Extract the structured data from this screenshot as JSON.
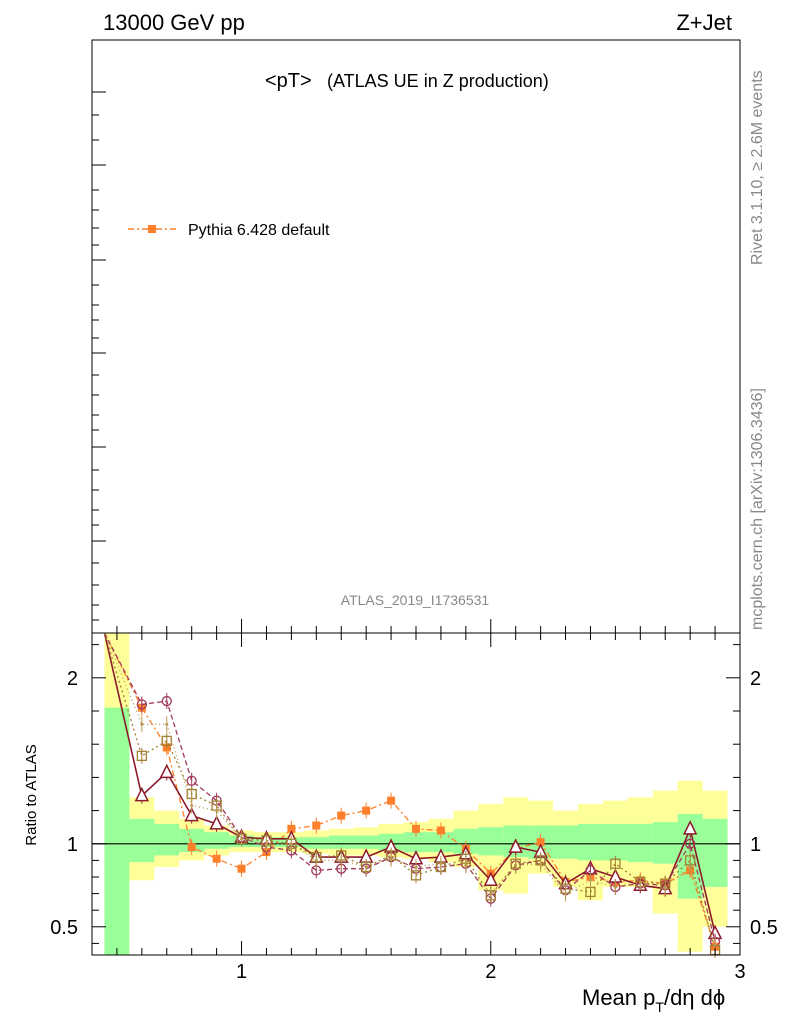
{
  "header": {
    "left": "13000 GeV pp",
    "right": "Z+Jet",
    "title_main": "<pT>",
    "title_sub": "(ATLAS UE in Z production)",
    "analysis": "ATLAS_2019_I1736531"
  },
  "side": {
    "rivet": "Rivet 3.1.10, ≥ 2.6M events",
    "mcplots": "mcplots.cern.ch [arXiv:1306.3436]"
  },
  "legend": {
    "entry": "Pythia 6.428 default"
  },
  "axes": {
    "xlabel_main": "Mean p",
    "xlabel_sub": "T",
    "xlabel_rest": "/dη dϕ",
    "ylabel": "Ratio to ATLAS"
  },
  "colors": {
    "band_inner": "#99ff99",
    "band_outer": "#ffff99",
    "pythia": "#ff7f2a",
    "c_dark": "#8b1a2b",
    "c_circle": "#a0385a",
    "c_square": "#a08030",
    "c_dot": "#b89a50"
  },
  "chart_data": {
    "type": "line",
    "xlim": [
      0.4,
      3.0
    ],
    "ylim": [
      0.33,
      2.27
    ],
    "xticks": [
      1,
      2,
      3
    ],
    "yticks": [
      0.5,
      1,
      2
    ],
    "x": [
      0.45,
      0.6,
      0.7,
      0.8,
      0.9,
      1.0,
      1.1,
      1.2,
      1.3,
      1.4,
      1.5,
      1.6,
      1.7,
      1.8,
      1.9,
      2.0,
      2.1,
      2.2,
      2.3,
      2.4,
      2.5,
      2.6,
      2.7,
      2.8,
      2.9
    ],
    "bin_edges": [
      0.45,
      0.55,
      0.65,
      0.75,
      0.85,
      0.95,
      1.05,
      1.15,
      1.25,
      1.35,
      1.45,
      1.55,
      1.65,
      1.75,
      1.85,
      1.95,
      2.05,
      2.15,
      2.25,
      2.35,
      2.45,
      2.55,
      2.65,
      2.75,
      2.85,
      2.95
    ],
    "band_inner": {
      "lo": [
        0.33,
        0.89,
        0.93,
        0.95,
        0.97,
        0.98,
        0.98,
        0.98,
        0.97,
        0.97,
        0.97,
        0.96,
        0.95,
        0.95,
        0.94,
        0.93,
        0.92,
        0.91,
        0.91,
        0.9,
        0.9,
        0.89,
        0.88,
        0.67,
        0.74
      ],
      "hi": [
        1.82,
        1.15,
        1.12,
        1.09,
        1.07,
        1.05,
        1.04,
        1.04,
        1.04,
        1.05,
        1.05,
        1.06,
        1.07,
        1.07,
        1.09,
        1.1,
        1.11,
        1.11,
        1.11,
        1.12,
        1.12,
        1.12,
        1.13,
        1.18,
        1.15
      ]
    },
    "band_outer": {
      "lo": [
        0.33,
        0.78,
        0.86,
        0.9,
        0.93,
        0.95,
        0.95,
        0.95,
        0.94,
        0.93,
        0.93,
        0.92,
        0.91,
        0.89,
        0.86,
        0.72,
        0.7,
        0.82,
        0.74,
        0.66,
        0.74,
        0.74,
        0.58,
        0.35,
        0.5
      ],
      "hi": [
        2.27,
        1.28,
        1.2,
        1.15,
        1.11,
        1.08,
        1.07,
        1.07,
        1.08,
        1.09,
        1.1,
        1.12,
        1.13,
        1.15,
        1.2,
        1.24,
        1.28,
        1.26,
        1.2,
        1.24,
        1.26,
        1.28,
        1.32,
        1.38,
        1.32
      ]
    },
    "series": [
      {
        "name": "Pythia 6.428 default",
        "style": "pythia",
        "values": [
          2.27,
          1.82,
          1.58,
          0.98,
          0.91,
          0.85,
          0.95,
          1.09,
          1.11,
          1.17,
          1.2,
          1.26,
          1.09,
          1.08,
          0.97,
          0.82,
          0.97,
          1.01,
          0.77,
          0.8,
          0.77,
          0.78,
          0.76,
          0.84,
          0.38
        ]
      },
      {
        "name": "",
        "style": "dark",
        "values": [
          2.27,
          1.29,
          1.43,
          1.17,
          1.12,
          1.04,
          1.03,
          1.03,
          0.92,
          0.92,
          0.92,
          0.98,
          0.91,
          0.92,
          0.94,
          0.78,
          0.98,
          0.95,
          0.76,
          0.85,
          0.8,
          0.75,
          0.73,
          1.09,
          0.46
        ]
      },
      {
        "name": "",
        "style": "circle",
        "values": [
          2.27,
          1.84,
          1.86,
          1.38,
          1.26,
          1.04,
          0.98,
          0.96,
          0.84,
          0.85,
          0.85,
          0.92,
          0.85,
          0.86,
          0.88,
          0.67,
          0.87,
          0.9,
          0.72,
          0.84,
          0.74,
          0.76,
          0.75,
          1.0,
          0.41
        ]
      },
      {
        "name": "",
        "style": "square",
        "values": [
          2.27,
          1.53,
          1.62,
          1.3,
          1.23,
          1.03,
          1.02,
          1.0,
          0.92,
          0.93,
          0.86,
          0.93,
          0.81,
          0.86,
          0.91,
          0.69,
          0.88,
          0.9,
          0.73,
          0.71,
          0.88,
          0.77,
          0.76,
          0.9,
          0.36
        ]
      },
      {
        "name": "",
        "style": "dot",
        "values": [
          2.27,
          1.72,
          1.72,
          1.23,
          1.2,
          1.03,
          1.0,
          1.0,
          0.9,
          0.9,
          0.86,
          0.91,
          0.86,
          0.88,
          0.87,
          0.7,
          0.87,
          0.88,
          0.7,
          0.78,
          0.74,
          0.77,
          0.74,
          0.86,
          0.39
        ]
      }
    ]
  }
}
